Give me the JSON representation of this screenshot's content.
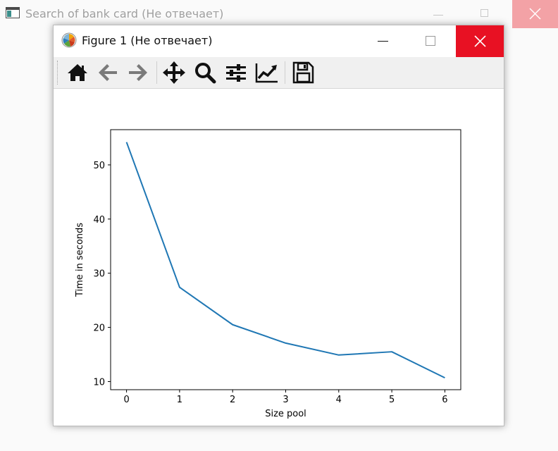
{
  "background_window": {
    "title": "Search of bank card (Не отвечает)",
    "close_color": "#f3a2a6"
  },
  "figure_window": {
    "title": "Figure 1 (Не отвечает)",
    "close_color": "#e81123"
  },
  "toolbar": {
    "buttons": [
      {
        "name": "home-icon",
        "tooltip": "Reset original view"
      },
      {
        "name": "back-arrow-icon",
        "tooltip": "Back to previous view"
      },
      {
        "name": "forward-arrow-icon",
        "tooltip": "Forward to next view"
      },
      {
        "name": "pan-move-icon",
        "tooltip": "Pan axes"
      },
      {
        "name": "zoom-magnifier-icon",
        "tooltip": "Zoom to rectangle"
      },
      {
        "name": "subplots-sliders-icon",
        "tooltip": "Configure subplots"
      },
      {
        "name": "edit-axes-chart-icon",
        "tooltip": "Edit axis"
      },
      {
        "name": "save-floppy-icon",
        "tooltip": "Save the figure"
      }
    ]
  },
  "chart_data": {
    "type": "line",
    "title": "",
    "xlabel": "Size pool",
    "ylabel": "Time in seconds",
    "x": [
      0,
      1,
      2,
      3,
      4,
      5,
      6
    ],
    "series": [
      {
        "values": [
          54.2,
          27.4,
          20.5,
          17.1,
          14.9,
          15.5,
          10.7
        ],
        "color": "#1f77b4"
      }
    ],
    "xlim": [
      -0.3,
      6.3
    ],
    "ylim": [
      8.5,
      56.5
    ],
    "xticks": [
      0,
      1,
      2,
      3,
      4,
      5,
      6
    ],
    "xtick_labels": [
      "0",
      "1",
      "2",
      "3",
      "4",
      "5",
      "6"
    ],
    "yticks": [
      10,
      20,
      30,
      40,
      50
    ],
    "ytick_labels": [
      "10",
      "20",
      "30",
      "40",
      "50"
    ],
    "grid": false
  }
}
